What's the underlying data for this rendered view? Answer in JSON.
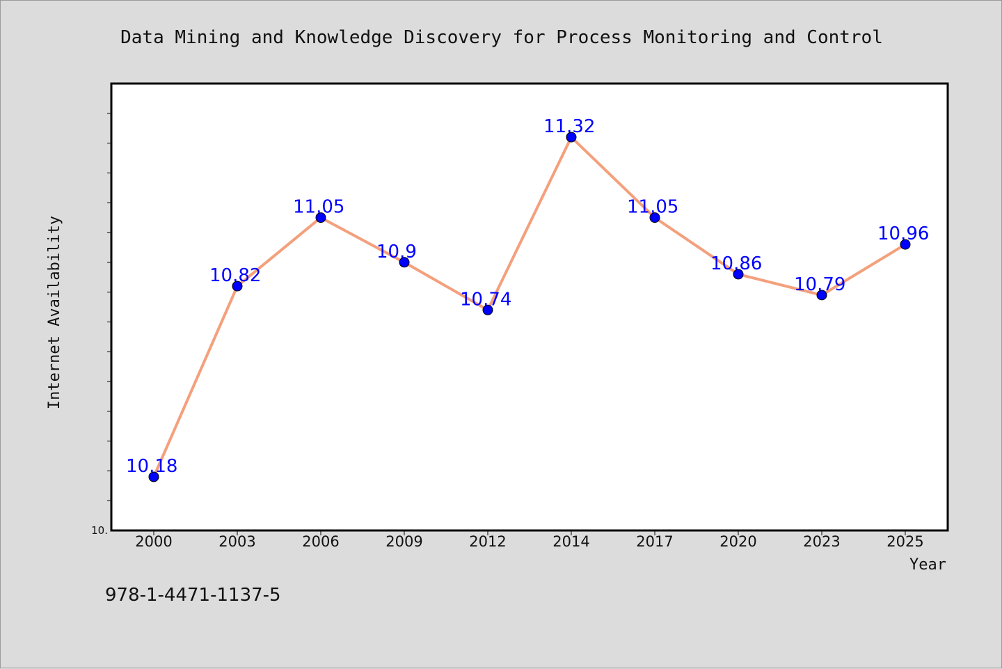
{
  "chart_data": {
    "type": "line",
    "title": "Data Mining and Knowledge Discovery for Process Monitoring and Control",
    "xlabel": "Year",
    "ylabel": "Internet Availability",
    "categories": [
      "2000",
      "2003",
      "2006",
      "2009",
      "2012",
      "2014",
      "2017",
      "2020",
      "2023",
      "2025"
    ],
    "values": [
      10.18,
      10.82,
      11.05,
      10.9,
      10.74,
      11.32,
      11.05,
      10.86,
      10.79,
      10.96
    ],
    "data_labels": [
      "10.18",
      "10.82",
      "11.05",
      "10.9",
      "10.74",
      "11.32",
      "11.05",
      "10.86",
      "10.79",
      "10.96"
    ],
    "ylim": [
      10.0,
      11.5
    ],
    "ytick_label": "10.",
    "y_minor_tick_step": 0.1,
    "grid": false,
    "legend": "none",
    "colors": {
      "line": "#f4a07c",
      "marker": "#0000ff",
      "data_label": "#0000ff",
      "background": "#dcdcdc",
      "plot_area": "#ffffff"
    }
  },
  "footer_text": "978-1-4471-1137-5"
}
